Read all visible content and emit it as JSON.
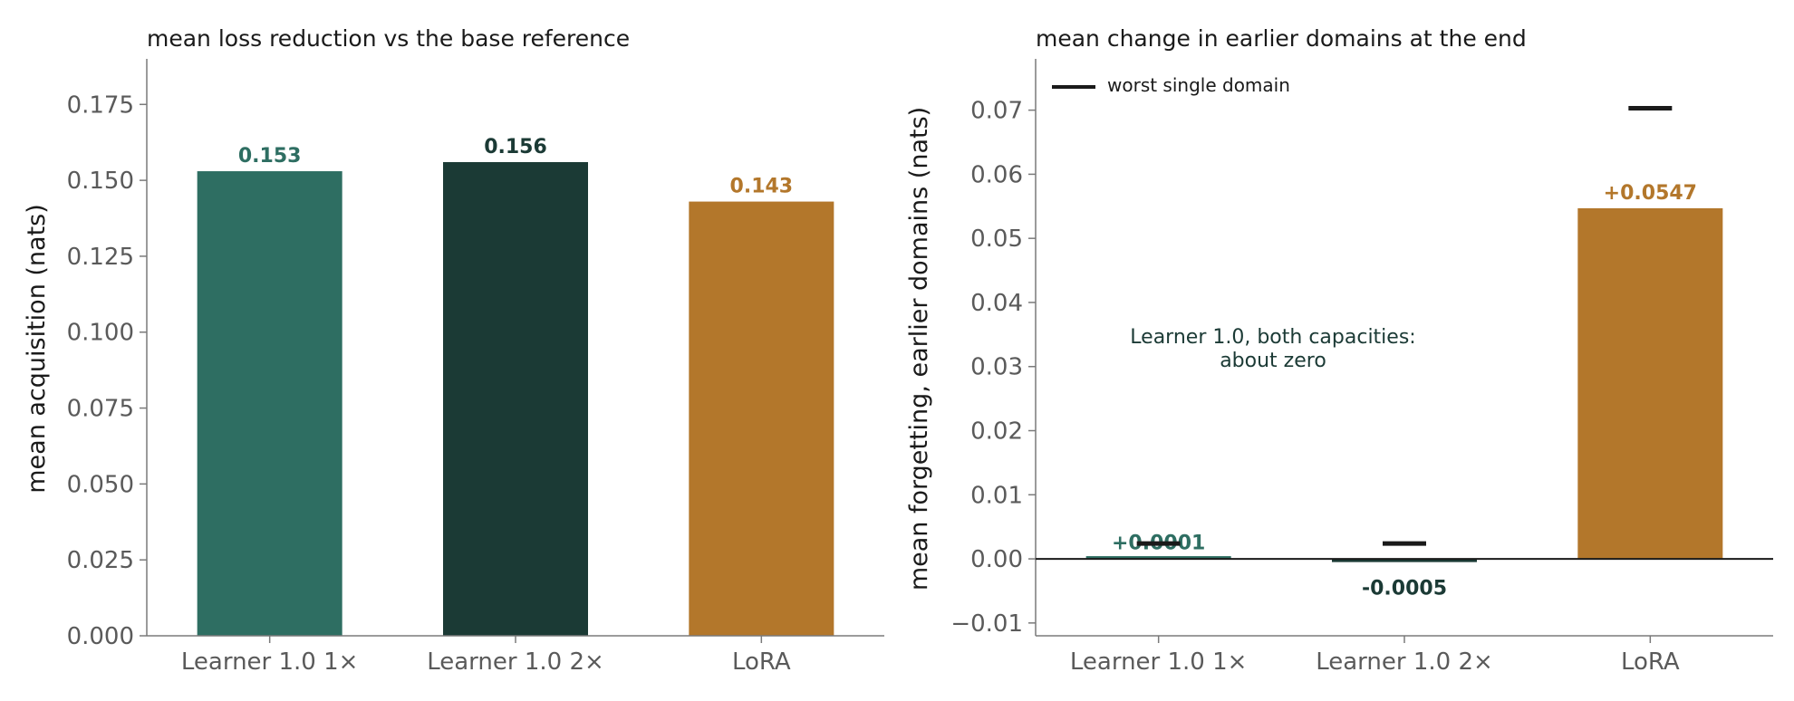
{
  "chart_data": [
    {
      "type": "bar",
      "title": "mean loss reduction vs the base reference",
      "ylabel": "mean acquisition (nats)",
      "categories": [
        "Learner 1.0 1×",
        "Learner 1.0 2×",
        "LoRA"
      ],
      "values": [
        0.153,
        0.156,
        0.143
      ],
      "value_labels": [
        "0.153",
        "0.156",
        "0.143"
      ],
      "colors": [
        "#2e6e62",
        "#1b3a35",
        "#b3772b"
      ],
      "ylim": [
        0,
        0.19
      ],
      "yticks": [
        0.0,
        0.025,
        0.05,
        0.075,
        0.1,
        0.125,
        0.15,
        0.175
      ],
      "ytick_labels": [
        "0.000",
        "0.025",
        "0.050",
        "0.075",
        "0.100",
        "0.125",
        "0.150",
        "0.175"
      ],
      "grid": false
    },
    {
      "type": "bar",
      "title": "mean change in earlier domains at the end",
      "ylabel": "mean forgetting, earlier domains (nats)",
      "categories": [
        "Learner 1.0 1×",
        "Learner 1.0 2×",
        "LoRA"
      ],
      "values": [
        0.0001,
        -0.0005,
        0.0547
      ],
      "value_labels": [
        "+0.0001",
        "-0.0005",
        "+0.0547"
      ],
      "colors": [
        "#2e6e62",
        "#1b3a35",
        "#b3772b"
      ],
      "worst_single_domain": [
        0.0024,
        0.0024,
        0.0703
      ],
      "legend": {
        "label": "worst single domain",
        "position": "top-left"
      },
      "annotation": {
        "lines": [
          "Learner 1.0, both capacities:",
          "about zero"
        ]
      },
      "ylim": [
        -0.012,
        0.078
      ],
      "yticks": [
        -0.01,
        0.0,
        0.01,
        0.02,
        0.03,
        0.04,
        0.05,
        0.06,
        0.07
      ],
      "ytick_labels": [
        "−0.01",
        "0.00",
        "0.01",
        "0.02",
        "0.03",
        "0.04",
        "0.05",
        "0.06",
        "0.07"
      ],
      "zero_line": true,
      "grid": false
    }
  ]
}
